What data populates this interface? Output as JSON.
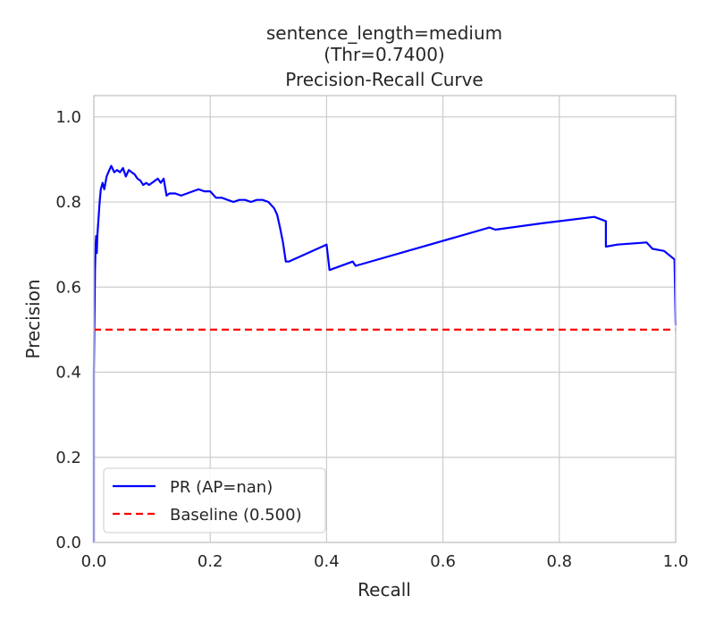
{
  "chart_data": {
    "type": "line",
    "title_lines": [
      "sentence_length=medium",
      "(Thr=0.7400)",
      "Precision-Recall Curve"
    ],
    "xlabel": "Recall",
    "ylabel": "Precision",
    "xlim": [
      0.0,
      1.0
    ],
    "ylim": [
      0.0,
      1.05
    ],
    "xticks": [
      0.0,
      0.2,
      0.4,
      0.6,
      0.8,
      1.0
    ],
    "xtick_labels": [
      "0.0",
      "0.2",
      "0.4",
      "0.6",
      "0.8",
      "1.0"
    ],
    "yticks": [
      0.0,
      0.2,
      0.4,
      0.6,
      0.8,
      1.0
    ],
    "ytick_labels": [
      "0.0",
      "0.2",
      "0.4",
      "0.6",
      "0.8",
      "1.0"
    ],
    "grid": true,
    "legend_position": "lower-left",
    "series": [
      {
        "name": "PR (AP=nan)",
        "color": "#0000ff",
        "style": "solid",
        "x": [
          0.0,
          0.0,
          0.002,
          0.003,
          0.004,
          0.005,
          0.006,
          0.008,
          0.01,
          0.012,
          0.015,
          0.018,
          0.02,
          0.022,
          0.025,
          0.03,
          0.035,
          0.04,
          0.045,
          0.05,
          0.055,
          0.06,
          0.065,
          0.07,
          0.075,
          0.08,
          0.085,
          0.09,
          0.095,
          0.1,
          0.105,
          0.11,
          0.115,
          0.12,
          0.125,
          0.13,
          0.14,
          0.15,
          0.16,
          0.17,
          0.18,
          0.19,
          0.2,
          0.21,
          0.22,
          0.23,
          0.24,
          0.25,
          0.26,
          0.27,
          0.28,
          0.29,
          0.3,
          0.31,
          0.315,
          0.32,
          0.325,
          0.33,
          0.335,
          0.4,
          0.405,
          0.445,
          0.45,
          0.68,
          0.69,
          0.77,
          0.86,
          0.88,
          0.88,
          0.9,
          0.95,
          0.96,
          0.98,
          0.998,
          1.0
        ],
        "y": [
          0.0,
          0.4,
          0.64,
          0.7,
          0.72,
          0.68,
          0.72,
          0.76,
          0.8,
          0.83,
          0.845,
          0.83,
          0.845,
          0.86,
          0.87,
          0.885,
          0.87,
          0.875,
          0.87,
          0.88,
          0.86,
          0.875,
          0.87,
          0.865,
          0.855,
          0.85,
          0.84,
          0.845,
          0.84,
          0.845,
          0.85,
          0.855,
          0.845,
          0.855,
          0.815,
          0.82,
          0.82,
          0.815,
          0.82,
          0.825,
          0.83,
          0.825,
          0.825,
          0.81,
          0.81,
          0.805,
          0.8,
          0.805,
          0.805,
          0.8,
          0.805,
          0.805,
          0.8,
          0.785,
          0.77,
          0.74,
          0.705,
          0.66,
          0.66,
          0.7,
          0.64,
          0.66,
          0.65,
          0.74,
          0.735,
          0.75,
          0.765,
          0.755,
          0.695,
          0.7,
          0.705,
          0.69,
          0.685,
          0.665,
          0.51
        ]
      },
      {
        "name": "Baseline (0.500)",
        "color": "#ff0000",
        "style": "dashed",
        "x": [
          0.0,
          1.0
        ],
        "y": [
          0.5,
          0.5
        ]
      }
    ]
  }
}
